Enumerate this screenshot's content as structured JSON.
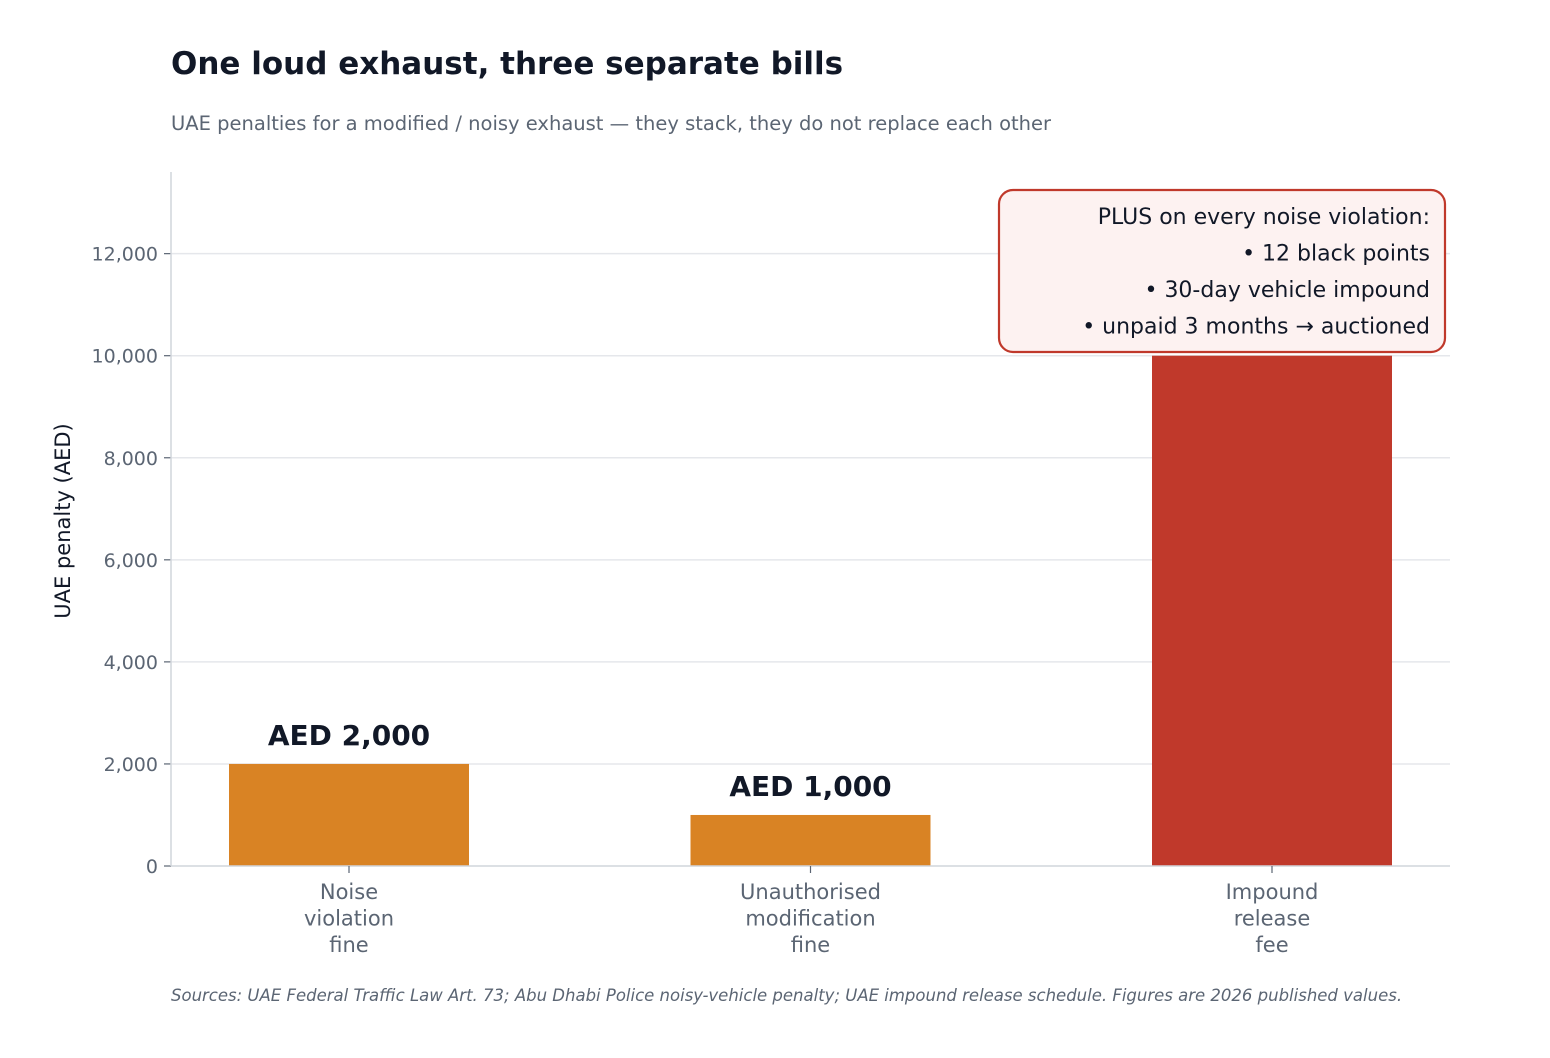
{
  "chart_data": {
    "type": "bar",
    "title": "One loud exhaust, three separate bills",
    "subtitle": "UAE penalties for a modified / noisy exhaust  —  they stack, they do not replace each other",
    "xlabel": "",
    "ylabel": "UAE penalty (AED)",
    "ylim": [
      0,
      13600
    ],
    "yticks": [
      0,
      2000,
      4000,
      6000,
      8000,
      10000,
      12000
    ],
    "ytick_labels": [
      "0",
      "2,000",
      "4,000",
      "6,000",
      "8,000",
      "10,000",
      "12,000"
    ],
    "grid": "horizontal",
    "categories": [
      [
        "Noise",
        "violation",
        "fine"
      ],
      [
        "Unauthorised",
        "modification",
        "fine"
      ],
      [
        "Impound",
        "release",
        "fee"
      ]
    ],
    "values": [
      2000,
      1000,
      10000
    ],
    "data_labels": [
      "AED 2,000",
      "AED 1,000",
      ""
    ],
    "bar_colors": [
      "#d98324",
      "#d98324",
      "#c0392b"
    ],
    "annotation": {
      "placement": "top-right",
      "lines": [
        "PLUS on every noise violation:",
        "•  12 black points",
        "•  30-day vehicle impound",
        "•  unpaid 3 months  →  auctioned"
      ],
      "border_color": "#c0392b",
      "fill_color": "#fdf2f1"
    },
    "source": "Sources: UAE Federal Traffic Law Art. 73; Abu Dhabi Police noisy-vehicle penalty; UAE impound release schedule.  Figures are 2026 published values."
  },
  "colors": {
    "text_dark": "#111827",
    "text_muted": "#5b6573",
    "grid": "#e5e7eb",
    "axis": "#d1d5db"
  }
}
